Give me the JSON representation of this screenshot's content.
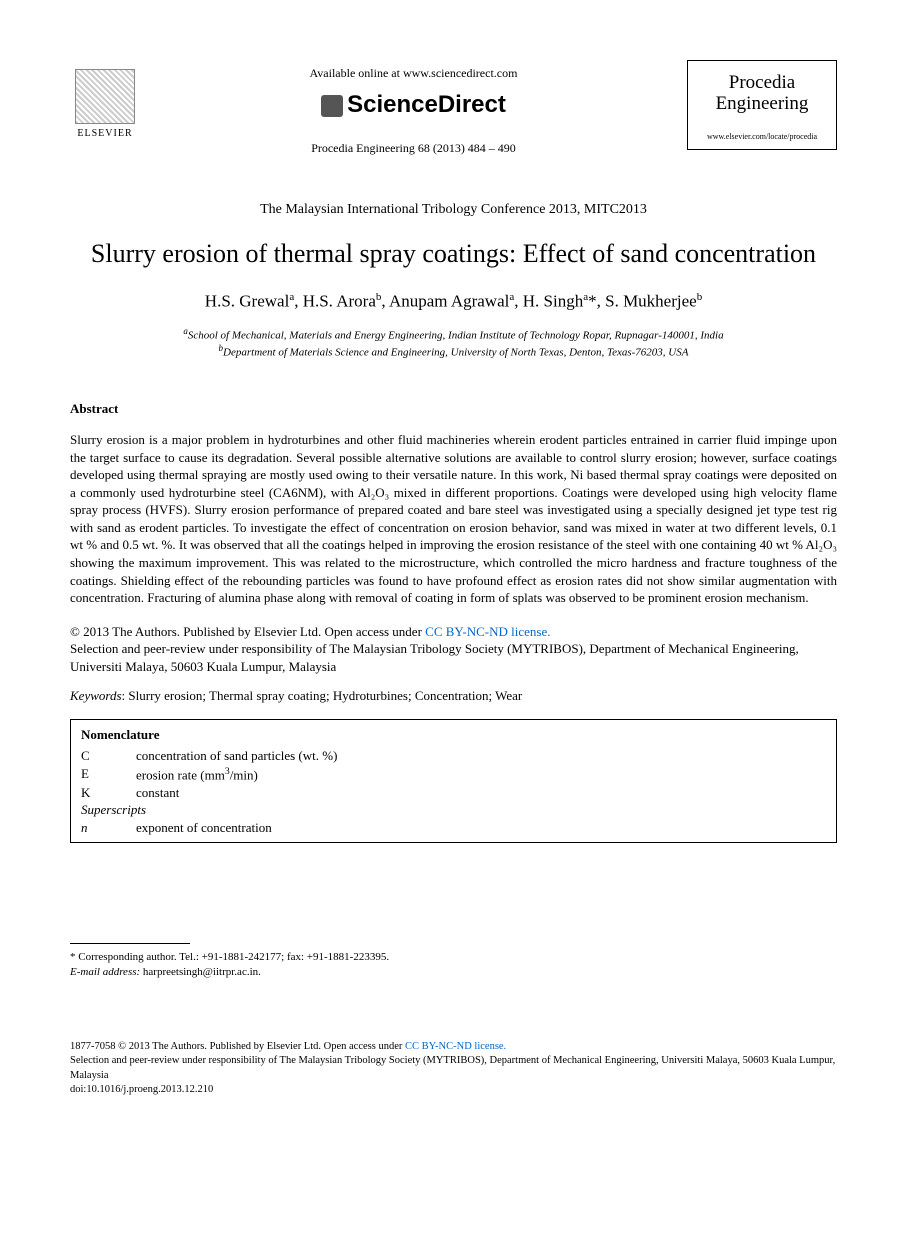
{
  "header": {
    "elsevier_label": "ELSEVIER",
    "available_online": "Available online at www.sciencedirect.com",
    "scidirect_logo": "ScienceDirect",
    "journal_ref": "Procedia Engineering 68 (2013) 484 – 490",
    "journal_box_title": "Procedia Engineering",
    "journal_box_url": "www.elsevier.com/locate/procedia"
  },
  "conference": "The Malaysian International Tribology Conference 2013, MITC2013",
  "title": "Slurry erosion of thermal spray coatings: Effect of sand concentration",
  "authors_html": "H.S. Grewal<sup>a</sup>, H.S. Arora<sup>b</sup>, Anupam Agrawal<sup>a</sup>, H. Singh<sup>a</sup>*, S. Mukherjee<sup>b</sup>",
  "affiliations": {
    "a": "School of Mechanical, Materials and Energy Engineering, Indian Institute of Technology Ropar, Rupnagar-140001, India",
    "b": "Department of Materials Science and Engineering, University of North Texas, Denton, Texas-76203, USA"
  },
  "abstract": {
    "heading": "Abstract",
    "text": "Slurry erosion is a major problem in hydroturbines and other fluid machineries wherein erodent particles entrained in carrier fluid impinge upon the target surface to cause its degradation. Several possible alternative solutions are available to control slurry erosion; however, surface coatings developed using thermal spraying are mostly used owing to their versatile nature. In this work, Ni based thermal spray coatings were deposited on a commonly used hydroturbine steel (CA6NM), with Al₂O₃ mixed in different proportions. Coatings were developed using high velocity flame spray process (HVFS). Slurry erosion performance of prepared coated and bare steel was investigated using a specially designed jet type test rig with sand as erodent particles. To investigate the effect of concentration on erosion behavior, sand was mixed in water at two different levels, 0.1 wt % and 0.5 wt. %. It was observed that all the coatings helped in improving the erosion resistance of the steel with one containing 40 wt % Al₂O₃ showing the maximum improvement. This was related to the microstructure, which controlled the micro hardness and fracture toughness of the coatings. Shielding effect of the rebounding particles was found to have profound effect as erosion rates did not show similar augmentation with concentration. Fracturing of alumina phase along with removal of coating in form of splats was observed to be prominent erosion mechanism."
  },
  "copyright": {
    "line1_prefix": "© 2013 The Authors. Published by Elsevier Ltd. ",
    "line1_open": "Open access under ",
    "cc_link": "CC BY-NC-ND license.",
    "line2": "Selection and peer-review under responsibility of The Malaysian Tribology Society (MYTRIBOS), Department of Mechanical Engineering, Universiti Malaya, 50603 Kuala Lumpur, Malaysia"
  },
  "keywords": {
    "label": "Keywords",
    "text": ": Slurry erosion; Thermal spray coating; Hydroturbines; Concentration; Wear"
  },
  "nomenclature": {
    "title": "Nomenclature",
    "rows": [
      {
        "sym": "C",
        "desc": "concentration of sand particles (wt. %)"
      },
      {
        "sym": "E",
        "desc_html": "erosion rate (mm<sup>3</sup>/min)"
      },
      {
        "sym": "K",
        "desc": "constant"
      }
    ],
    "section": "Superscripts",
    "super_rows": [
      {
        "sym": "n",
        "sym_italic": true,
        "desc": "exponent of concentration"
      }
    ]
  },
  "footnote": {
    "corr": "* Corresponding author. Tel.: +91-1881-242177; fax: +91-1881-223395.",
    "email_label": "E-mail address:",
    "email": " harpreetsingh@iitrpr.ac.in."
  },
  "footer": {
    "issn_line_prefix": "1877-7058 © 2013 The Authors. Published by Elsevier Ltd. ",
    "issn_open": "Open access under ",
    "cc_link": "CC BY-NC-ND license.",
    "line2": "Selection and peer-review under responsibility of The Malaysian Tribology Society (MYTRIBOS), Department of Mechanical Engineering, Universiti Malaya, 50603 Kuala Lumpur, Malaysia",
    "doi": "doi:10.1016/j.proeng.2013.12.210"
  },
  "colors": {
    "link": "#0066cc",
    "text": "#000000",
    "background": "#ffffff"
  }
}
